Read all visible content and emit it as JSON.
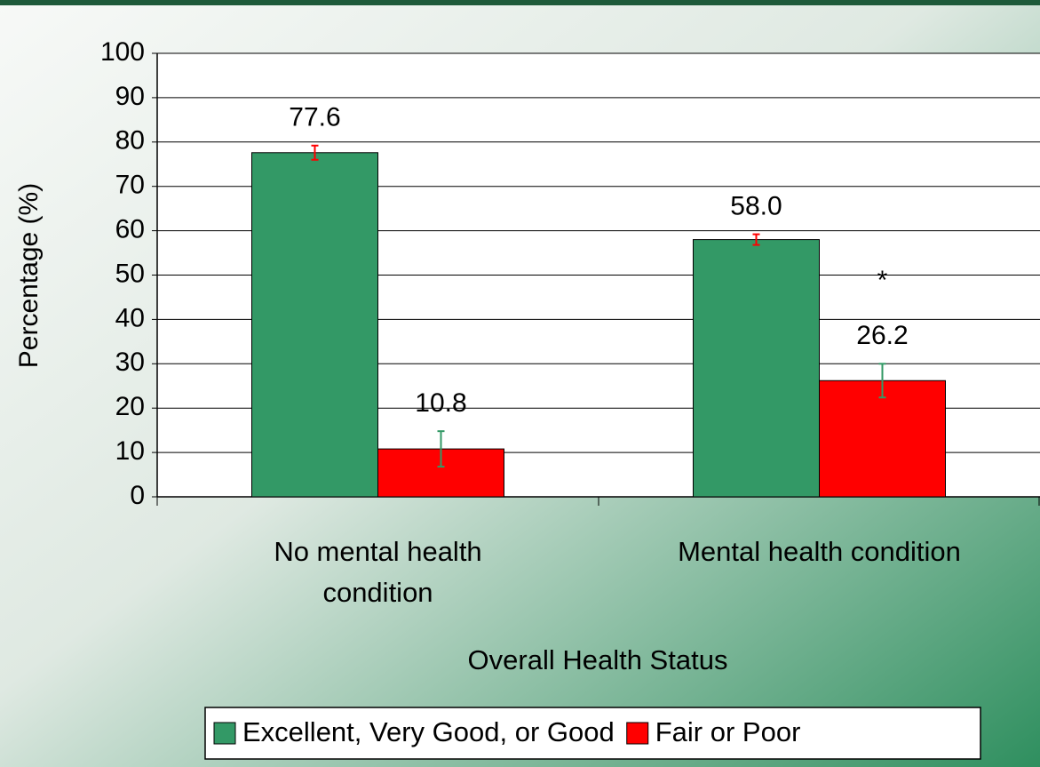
{
  "chart_data": {
    "type": "bar",
    "categories": [
      "No mental health condition",
      "Mental health condition"
    ],
    "series": [
      {
        "name": "Excellent, Very Good, or Good",
        "color": "#339966",
        "error_color": "#ff0000",
        "values": [
          77.6,
          58.0
        ],
        "value_labels": [
          "77.6",
          "58.0"
        ],
        "errors": [
          1.6,
          1.2
        ]
      },
      {
        "name": "Fair or Poor",
        "color": "#ff0000",
        "error_color": "#339966",
        "values": [
          10.8,
          26.2
        ],
        "value_labels": [
          "10.8",
          "26.2"
        ],
        "errors": [
          4,
          3.8
        ]
      }
    ],
    "ylabel": "Percentage (%)",
    "xlabel": "Overall Health Status",
    "annotation": "*",
    "ylim": [
      0,
      100
    ],
    "yticks": [
      0,
      10,
      20,
      30,
      40,
      50,
      60,
      70,
      80,
      90,
      100
    ],
    "grid": true,
    "legend": "bottom"
  }
}
